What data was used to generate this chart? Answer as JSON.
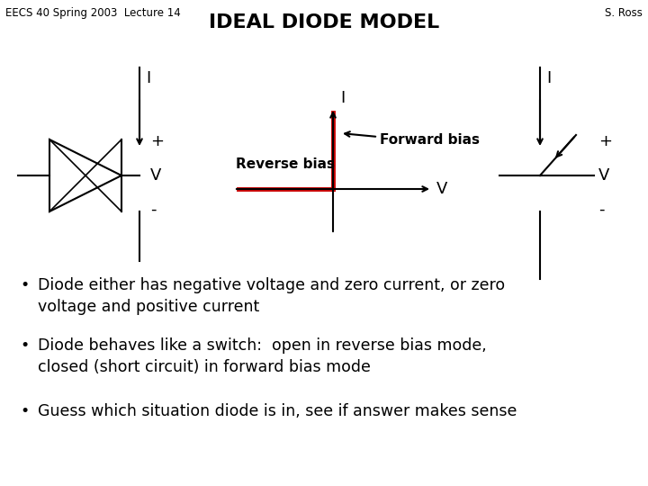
{
  "title": "IDEAL DIODE MODEL",
  "header_left": "EECS 40 Spring 2003  Lecture 14",
  "header_right": "S. Ross",
  "bullet1": "Diode either has negative voltage and zero current, or zero\nvoltage and positive current",
  "bullet2": "Diode behaves like a switch:  open in reverse bias mode,\nclosed (short circuit) in forward bias mode",
  "bullet3": "Guess which situation diode is in, see if answer makes sense",
  "bg_color": "#ffffff",
  "text_color": "#000000",
  "red_color": "#cc0000",
  "forward_bias_label": "Forward bias",
  "reverse_bias_label": "Reverse bias",
  "I_label": "I",
  "V_label": "V",
  "plus_label": "+",
  "minus_label": "-"
}
